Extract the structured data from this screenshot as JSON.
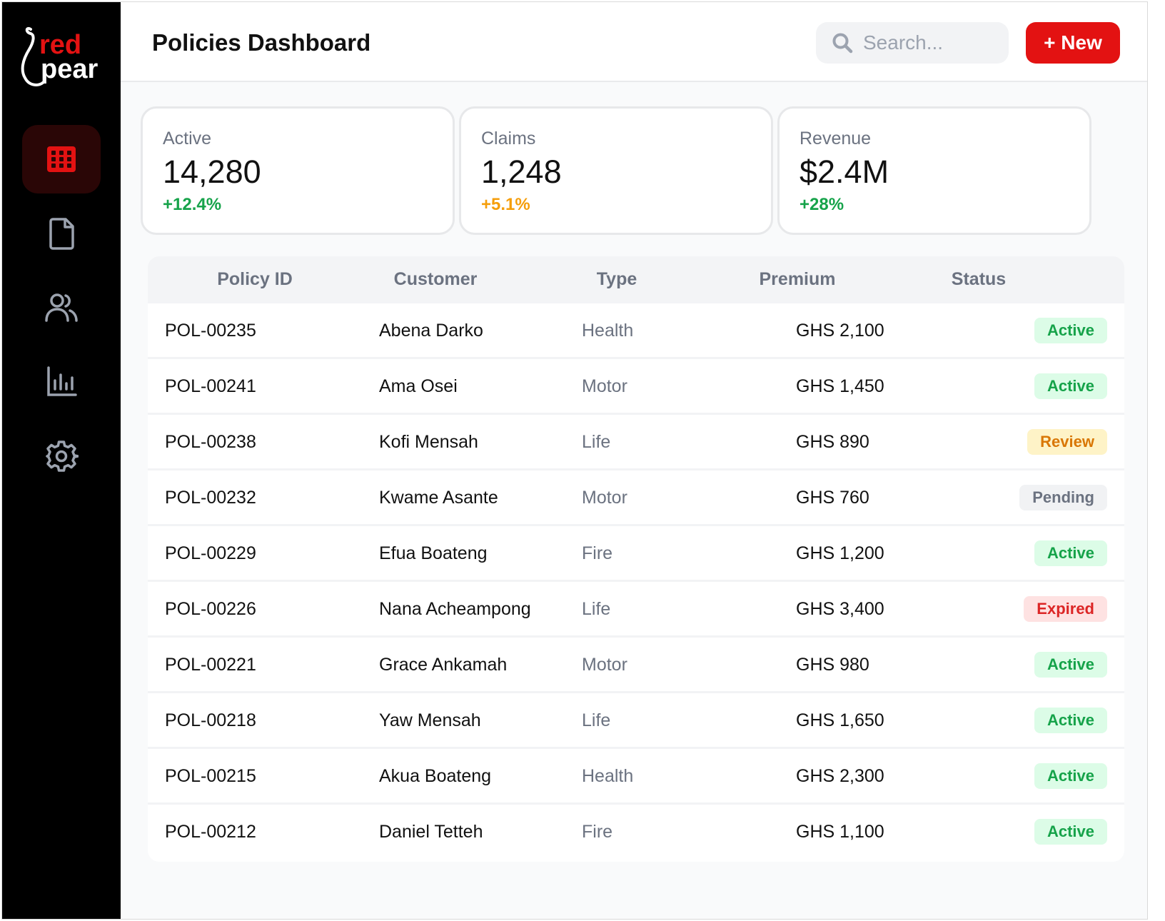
{
  "logo": {
    "top": "red",
    "bottom": "pear"
  },
  "header": {
    "title": "Policies Dashboard",
    "search_placeholder": "Search...",
    "new_button": "+ New"
  },
  "sidebar": {
    "items": [
      {
        "icon": "grid-icon",
        "active": true
      },
      {
        "icon": "document-icon",
        "active": false
      },
      {
        "icon": "users-icon",
        "active": false
      },
      {
        "icon": "bar-chart-icon",
        "active": false
      },
      {
        "icon": "gear-icon",
        "active": false
      }
    ]
  },
  "stats": [
    {
      "label": "Active",
      "value": "14,280",
      "delta": "+12.4%",
      "delta_color": "#16a34a"
    },
    {
      "label": "Claims",
      "value": "1,248",
      "delta": "+5.1%",
      "delta_color": "#f59e0b"
    },
    {
      "label": "Revenue",
      "value": "$2.4M",
      "delta": "+28%",
      "delta_color": "#16a34a"
    }
  ],
  "table": {
    "columns": [
      "Policy ID",
      "Customer",
      "Type",
      "Premium",
      "Status"
    ],
    "rows": [
      {
        "id": "POL-00235",
        "customer": "Abena Darko",
        "type": "Health",
        "premium": "GHS 2,100",
        "status": "Active"
      },
      {
        "id": "POL-00241",
        "customer": "Ama Osei",
        "type": "Motor",
        "premium": "GHS 1,450",
        "status": "Active"
      },
      {
        "id": "POL-00238",
        "customer": "Kofi Mensah",
        "type": "Life",
        "premium": "GHS 890",
        "status": "Review"
      },
      {
        "id": "POL-00232",
        "customer": "Kwame Asante",
        "type": "Motor",
        "premium": "GHS 760",
        "status": "Pending"
      },
      {
        "id": "POL-00229",
        "customer": "Efua Boateng",
        "type": "Fire",
        "premium": "GHS 1,200",
        "status": "Active"
      },
      {
        "id": "POL-00226",
        "customer": "Nana Acheampong",
        "type": "Life",
        "premium": "GHS 3,400",
        "status": "Expired"
      },
      {
        "id": "POL-00221",
        "customer": "Grace Ankamah",
        "type": "Motor",
        "premium": "GHS 980",
        "status": "Active"
      },
      {
        "id": "POL-00218",
        "customer": "Yaw Mensah",
        "type": "Life",
        "premium": "GHS 1,650",
        "status": "Active"
      },
      {
        "id": "POL-00215",
        "customer": "Akua Boateng",
        "type": "Health",
        "premium": "GHS 2,300",
        "status": "Active"
      },
      {
        "id": "POL-00212",
        "customer": "Daniel Tetteh",
        "type": "Fire",
        "premium": "GHS 1,100",
        "status": "Active"
      }
    ]
  },
  "colors": {
    "brand": "#e31212",
    "sidebar_bg": "#000000",
    "active_green": "#16a34a",
    "warning_amber": "#d97706",
    "danger_red": "#dc2626"
  }
}
